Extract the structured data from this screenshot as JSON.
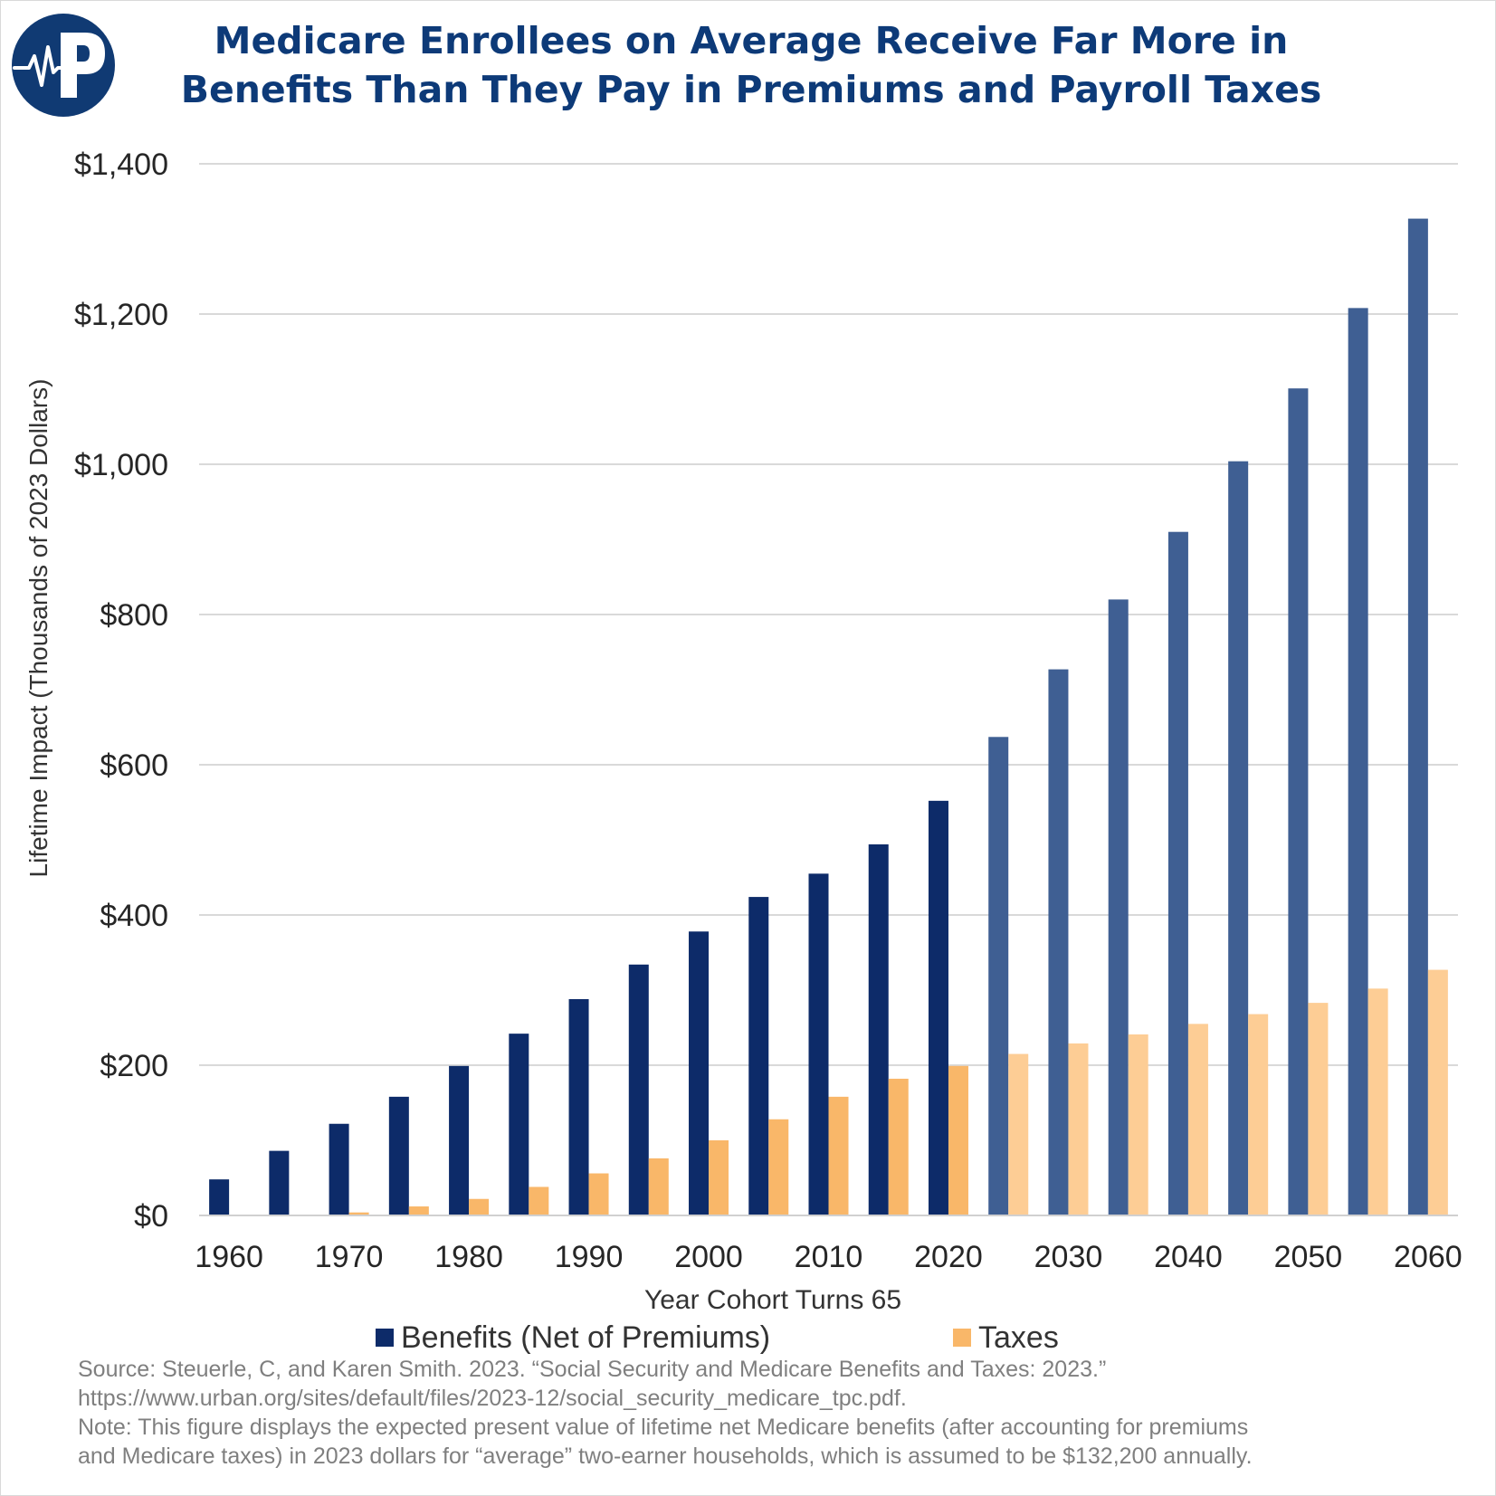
{
  "title_lines": [
    "Medicare Enrollees on Average Receive Far More in",
    "Benefits Than They Pay in Premiums and Payroll Taxes"
  ],
  "logo": {
    "icon": "heartbeat-p-logo",
    "letter": "P",
    "bg_color": "#103a73"
  },
  "chart_data": {
    "type": "bar",
    "categories": [
      "1960",
      "1965",
      "1970",
      "1975",
      "1980",
      "1985",
      "1990",
      "1995",
      "2000",
      "2005",
      "2010",
      "2015",
      "2020",
      "2025",
      "2030",
      "2035",
      "2040",
      "2045",
      "2050",
      "2055",
      "2060"
    ],
    "x_tick_labels": [
      "1960",
      "1970",
      "1980",
      "1990",
      "2000",
      "2010",
      "2020",
      "2030",
      "2040",
      "2050",
      "2060"
    ],
    "series": [
      {
        "name": "Benefits (Net of Premiums)",
        "color": "#0d2b69",
        "projected_color": "#3f5f93",
        "values": [
          48,
          86,
          122,
          158,
          199,
          242,
          288,
          334,
          378,
          424,
          455,
          494,
          552,
          637,
          727,
          820,
          910,
          1004,
          1101,
          1208,
          1327
        ]
      },
      {
        "name": "Taxes",
        "color": "#f9b769",
        "projected_color": "#fdcd95",
        "values": [
          0,
          0,
          4,
          12,
          22,
          38,
          56,
          76,
          100,
          128,
          158,
          182,
          199,
          215,
          229,
          241,
          255,
          268,
          283,
          302,
          327
        ]
      }
    ],
    "projected_from": "2025",
    "xlabel": "Year Cohort Turns 65",
    "ylabel": "Lifetime Impact (Thousands of 2023 Dollars)",
    "ylim": [
      0,
      1400
    ],
    "y_ticks": [
      0,
      200,
      400,
      600,
      800,
      1000,
      1200,
      1400
    ],
    "y_tick_labels": [
      "$0",
      "$200",
      "$400",
      "$600",
      "$800",
      "$1,000",
      "$1,200",
      "$1,400"
    ],
    "grid": true,
    "legend_position": "bottom"
  },
  "notes": {
    "source_line1": "Source: Steuerle, C, and Karen Smith. 2023. “Social Security and Medicare Benefits and Taxes: 2023.”",
    "source_line2": "https://www.urban.org/sites/default/files/2023-12/social_security_medicare_tpc.pdf.",
    "note_line1": "Note: This figure displays the expected present value of lifetime net Medicare benefits (after accounting for premiums",
    "note_line2": "and Medicare taxes) in 2023 dollars for “average” two-earner households, which is assumed to be $132,200 annually."
  }
}
